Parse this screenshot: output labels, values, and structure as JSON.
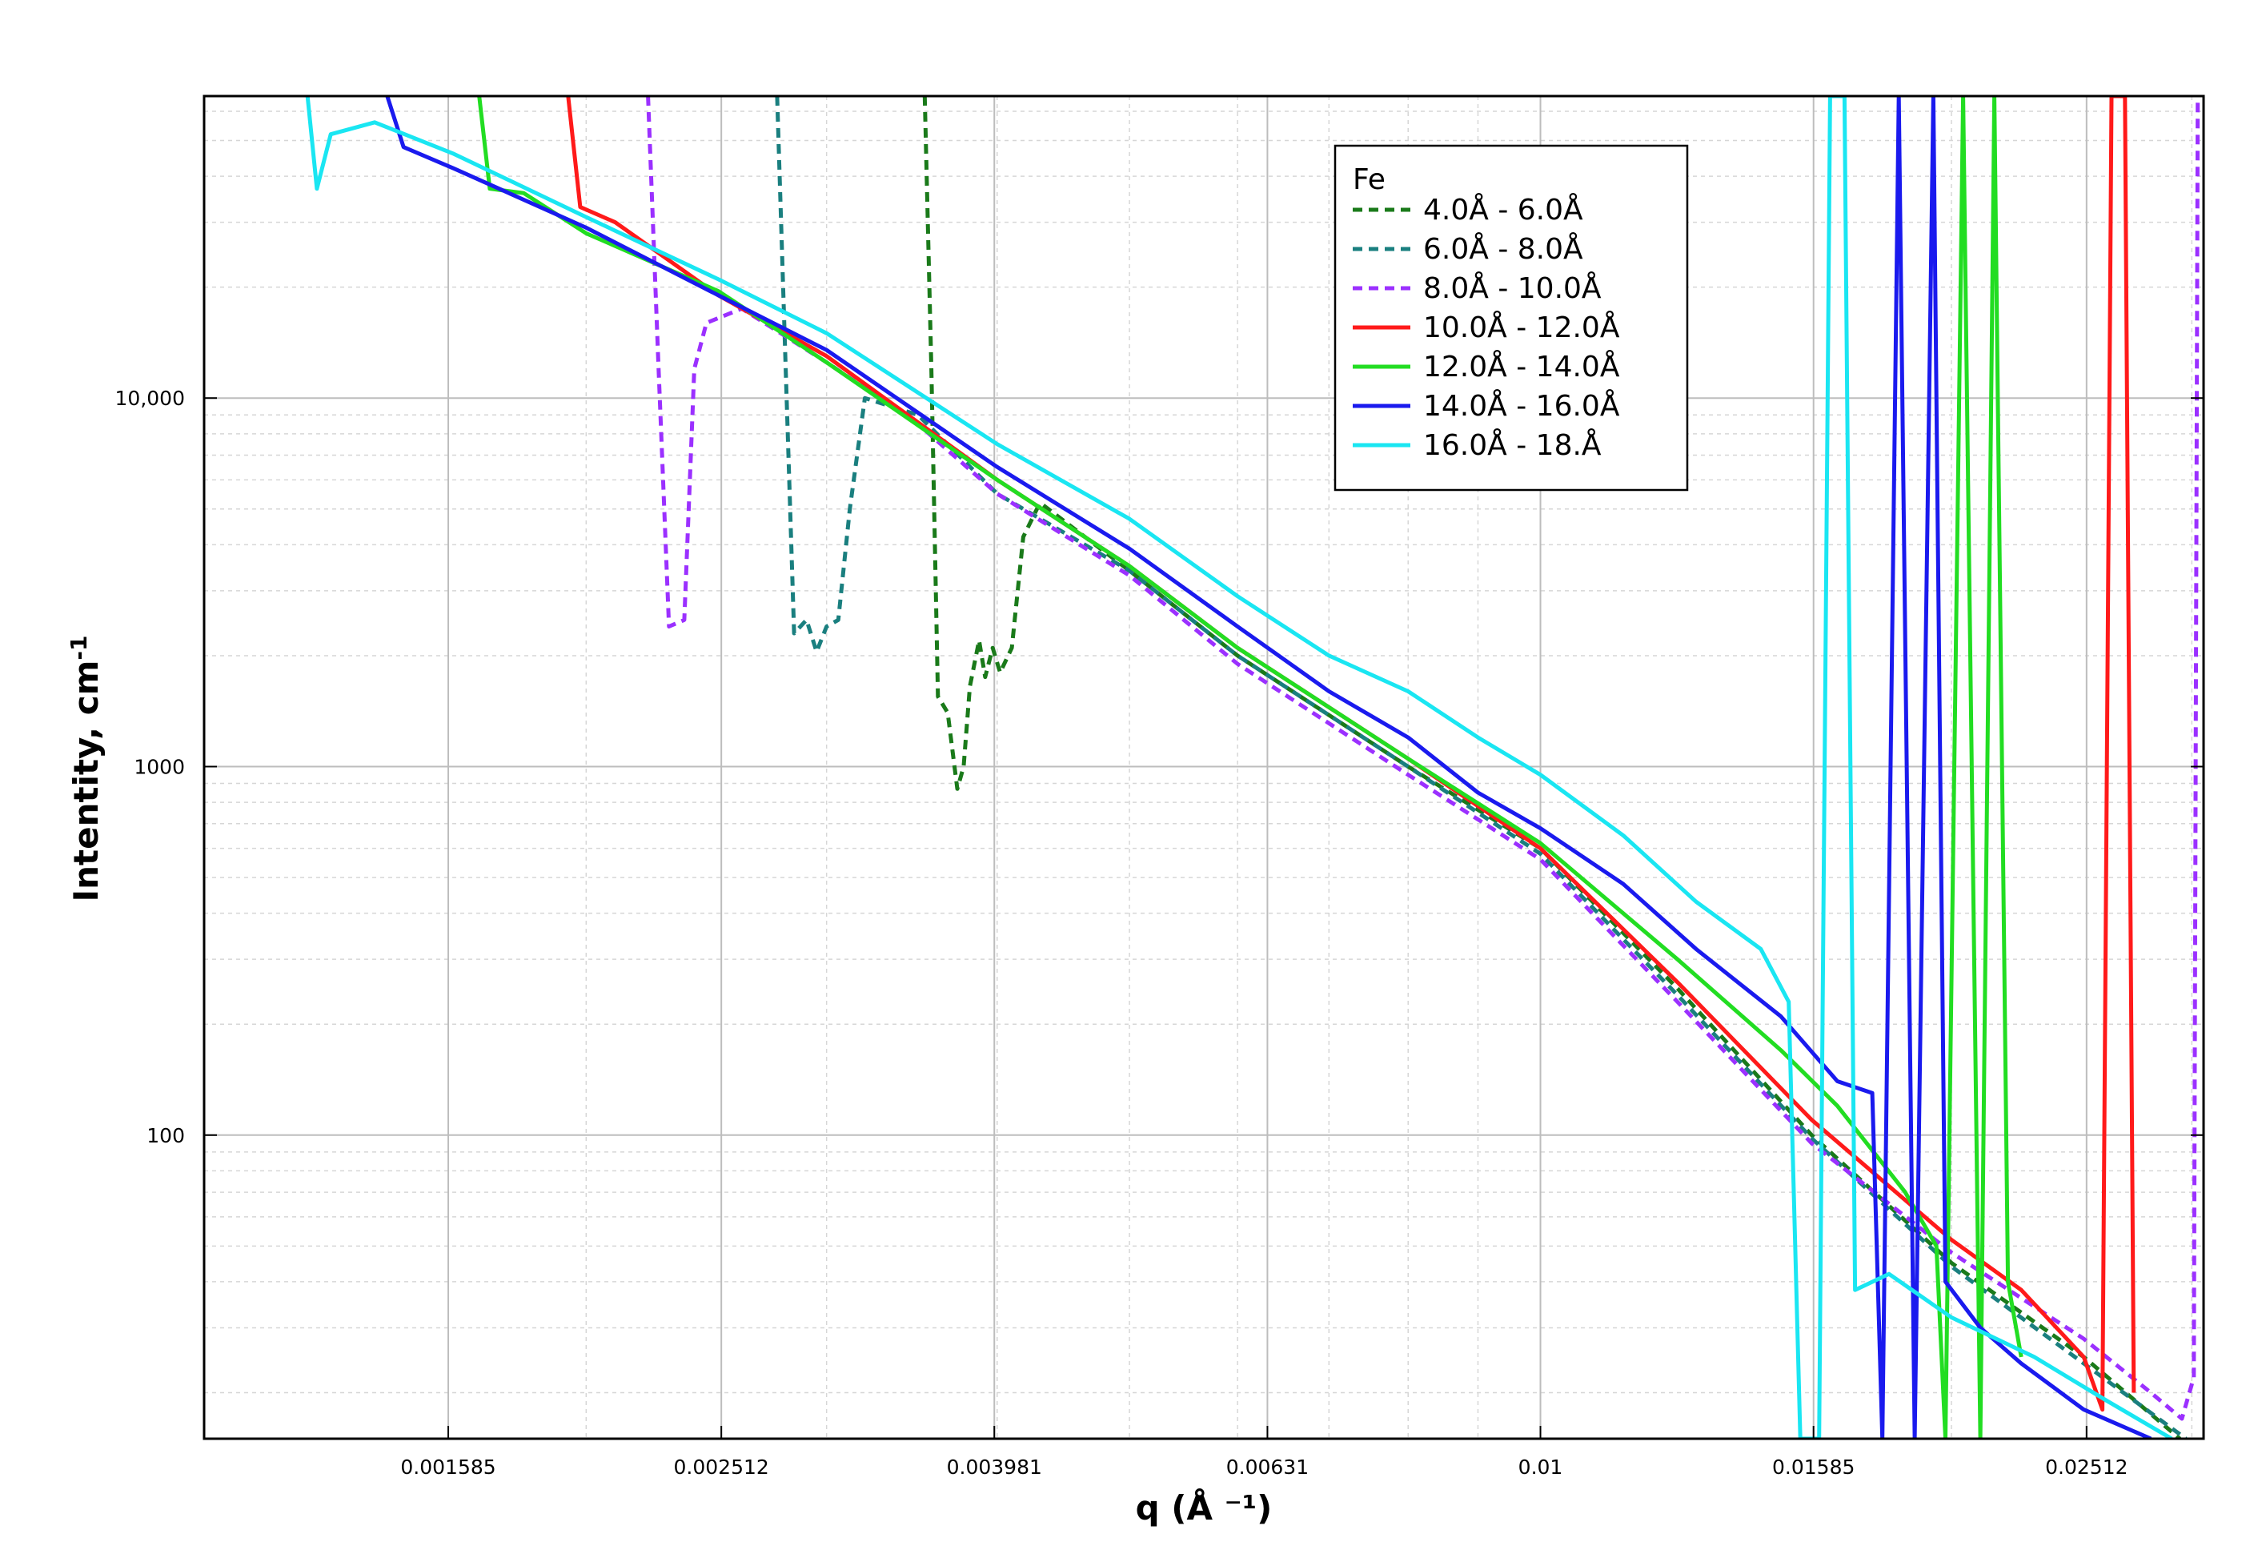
{
  "chart_data": {
    "type": "line",
    "xlabel": "q (Å ⁻¹)",
    "ylabel": "Intentity, cm",
    "ylabel_sup": "-1",
    "x_scale": "log",
    "y_scale": "log",
    "xlim": [
      0.00105,
      0.0306
    ],
    "ylim": [
      15,
      66000
    ],
    "x_ticks": [
      {
        "value": 0.001585,
        "label": "0.001585"
      },
      {
        "value": 0.002512,
        "label": "0.002512"
      },
      {
        "value": 0.003981,
        "label": "0.003981"
      },
      {
        "value": 0.00631,
        "label": "0.00631"
      },
      {
        "value": 0.01,
        "label": "0.01"
      },
      {
        "value": 0.01585,
        "label": "0.01585"
      },
      {
        "value": 0.02512,
        "label": "0.02512"
      }
    ],
    "y_ticks": [
      {
        "value": 100,
        "label": "100"
      },
      {
        "value": 1000,
        "label": "1000"
      },
      {
        "value": 10000,
        "label": "10,000"
      }
    ],
    "grid": true,
    "legend": {
      "title": "Fe",
      "position": "top-right"
    },
    "series": [
      {
        "name": "4.0Å  - 6.0Å",
        "color": "#1a7a1a",
        "dash": true,
        "points": [
          [
            0.00354,
            66000
          ],
          [
            0.00358,
            12000
          ],
          [
            0.00362,
            1550
          ],
          [
            0.00368,
            1400
          ],
          [
            0.00374,
            870
          ],
          [
            0.00378,
            1000
          ],
          [
            0.00382,
            1650
          ],
          [
            0.00388,
            2200
          ],
          [
            0.00392,
            1750
          ],
          [
            0.00397,
            2100
          ],
          [
            0.00402,
            1800
          ],
          [
            0.0041,
            2100
          ],
          [
            0.00418,
            4200
          ],
          [
            0.0043,
            5200
          ],
          [
            0.005,
            3400
          ],
          [
            0.006,
            2000
          ],
          [
            0.008,
            1000
          ],
          [
            0.01,
            600
          ],
          [
            0.0126,
            250
          ],
          [
            0.0158,
            100
          ],
          [
            0.02,
            45
          ],
          [
            0.025,
            25
          ],
          [
            0.0294,
            15
          ]
        ]
      },
      {
        "name": "6.0Å  - 8.0Å",
        "color": "#1a7f7f",
        "dash": true,
        "points": [
          [
            0.00276,
            66000
          ],
          [
            0.0028,
            12000
          ],
          [
            0.00284,
            2300
          ],
          [
            0.0029,
            2500
          ],
          [
            0.00295,
            2050
          ],
          [
            0.003,
            2400
          ],
          [
            0.00306,
            2500
          ],
          [
            0.00312,
            5000
          ],
          [
            0.0032,
            10000
          ],
          [
            0.0035,
            9000
          ],
          [
            0.004,
            5500
          ],
          [
            0.005,
            3400
          ],
          [
            0.006,
            2000
          ],
          [
            0.008,
            1000
          ],
          [
            0.01,
            580
          ],
          [
            0.0126,
            240
          ],
          [
            0.0158,
            98
          ],
          [
            0.02,
            44
          ],
          [
            0.025,
            24
          ],
          [
            0.0297,
            15
          ]
        ]
      },
      {
        "name": "8.0Å  - 10.0Å",
        "color": "#9b30ff",
        "dash": true,
        "points": [
          [
            0.00222,
            66000
          ],
          [
            0.00226,
            12000
          ],
          [
            0.0023,
            2400
          ],
          [
            0.00236,
            2500
          ],
          [
            0.0024,
            12000
          ],
          [
            0.00245,
            16000
          ],
          [
            0.0026,
            17500
          ],
          [
            0.003,
            12500
          ],
          [
            0.0035,
            8500
          ],
          [
            0.004,
            5500
          ],
          [
            0.005,
            3300
          ],
          [
            0.006,
            1900
          ],
          [
            0.008,
            950
          ],
          [
            0.01,
            560
          ],
          [
            0.0126,
            230
          ],
          [
            0.0158,
            95
          ],
          [
            0.02,
            48
          ],
          [
            0.025,
            28
          ],
          [
            0.028,
            20
          ],
          [
            0.0295,
            17
          ],
          [
            0.0301,
            22
          ],
          [
            0.0303,
            66000
          ]
        ]
      },
      {
        "name": "10.0Å  - 12.0Å",
        "color": "#ff1a1a",
        "dash": false,
        "points": [
          [
            0.00194,
            66000
          ],
          [
            0.00198,
            33000
          ],
          [
            0.0021,
            30000
          ],
          [
            0.0025,
            19000
          ],
          [
            0.003,
            13000
          ],
          [
            0.004,
            6000
          ],
          [
            0.005,
            3500
          ],
          [
            0.006,
            2100
          ],
          [
            0.008,
            1050
          ],
          [
            0.01,
            600
          ],
          [
            0.0126,
            260
          ],
          [
            0.0158,
            110
          ],
          [
            0.02,
            52
          ],
          [
            0.0225,
            38
          ],
          [
            0.025,
            25
          ],
          [
            0.0258,
            18
          ],
          [
            0.0262,
            66000
          ],
          [
            0.0268,
            66000
          ],
          [
            0.0272,
            20
          ]
        ]
      },
      {
        "name": "12.0Å  - 14.0Å",
        "color": "#22dd22",
        "dash": false,
        "points": [
          [
            0.00167,
            66000
          ],
          [
            0.0017,
            37000
          ],
          [
            0.0018,
            36000
          ],
          [
            0.002,
            28000
          ],
          [
            0.0025,
            19500
          ],
          [
            0.003,
            12500
          ],
          [
            0.004,
            6000
          ],
          [
            0.005,
            3500
          ],
          [
            0.006,
            2100
          ],
          [
            0.008,
            1050
          ],
          [
            0.01,
            620
          ],
          [
            0.0126,
            300
          ],
          [
            0.015,
            170
          ],
          [
            0.0165,
            120
          ],
          [
            0.0185,
            70
          ],
          [
            0.0195,
            50
          ],
          [
            0.0198,
            15
          ],
          [
            0.0204,
            66000
          ],
          [
            0.021,
            15
          ],
          [
            0.0215,
            66000
          ],
          [
            0.022,
            40
          ],
          [
            0.0225,
            25
          ]
        ]
      },
      {
        "name": "14.0Å  - 16.0Å",
        "color": "#1a1aee",
        "dash": false,
        "points": [
          [
            0.00143,
            66000
          ],
          [
            0.00147,
            48000
          ],
          [
            0.0016,
            42000
          ],
          [
            0.002,
            29000
          ],
          [
            0.0025,
            19000
          ],
          [
            0.003,
            13500
          ],
          [
            0.004,
            6500
          ],
          [
            0.005,
            3900
          ],
          [
            0.006,
            2400
          ],
          [
            0.007,
            1600
          ],
          [
            0.008,
            1200
          ],
          [
            0.009,
            850
          ],
          [
            0.01,
            680
          ],
          [
            0.0115,
            480
          ],
          [
            0.013,
            320
          ],
          [
            0.015,
            210
          ],
          [
            0.0165,
            140
          ],
          [
            0.0175,
            130
          ],
          [
            0.0178,
            15
          ],
          [
            0.0183,
            66000
          ],
          [
            0.0188,
            15
          ],
          [
            0.0194,
            66000
          ],
          [
            0.0198,
            40
          ],
          [
            0.021,
            30
          ],
          [
            0.0225,
            24
          ],
          [
            0.025,
            18
          ],
          [
            0.028,
            15
          ]
        ]
      },
      {
        "name": "16.0Å  - 18.Å",
        "color": "#1ae6f2",
        "dash": false,
        "points": [
          [
            0.00125,
            66000
          ],
          [
            0.00127,
            37000
          ],
          [
            0.0013,
            52000
          ],
          [
            0.0014,
            56000
          ],
          [
            0.0016,
            46000
          ],
          [
            0.002,
            31000
          ],
          [
            0.0025,
            21000
          ],
          [
            0.003,
            15000
          ],
          [
            0.004,
            7500
          ],
          [
            0.005,
            4700
          ],
          [
            0.006,
            2900
          ],
          [
            0.007,
            2000
          ],
          [
            0.008,
            1600
          ],
          [
            0.009,
            1200
          ],
          [
            0.01,
            950
          ],
          [
            0.0115,
            650
          ],
          [
            0.013,
            430
          ],
          [
            0.0145,
            320
          ],
          [
            0.0152,
            230
          ],
          [
            0.0155,
            15
          ],
          [
            0.016,
            15
          ],
          [
            0.0163,
            66000
          ],
          [
            0.0167,
            66000
          ],
          [
            0.017,
            38
          ],
          [
            0.018,
            42
          ],
          [
            0.02,
            32
          ],
          [
            0.023,
            25
          ],
          [
            0.026,
            19
          ],
          [
            0.029,
            15
          ]
        ]
      }
    ]
  }
}
